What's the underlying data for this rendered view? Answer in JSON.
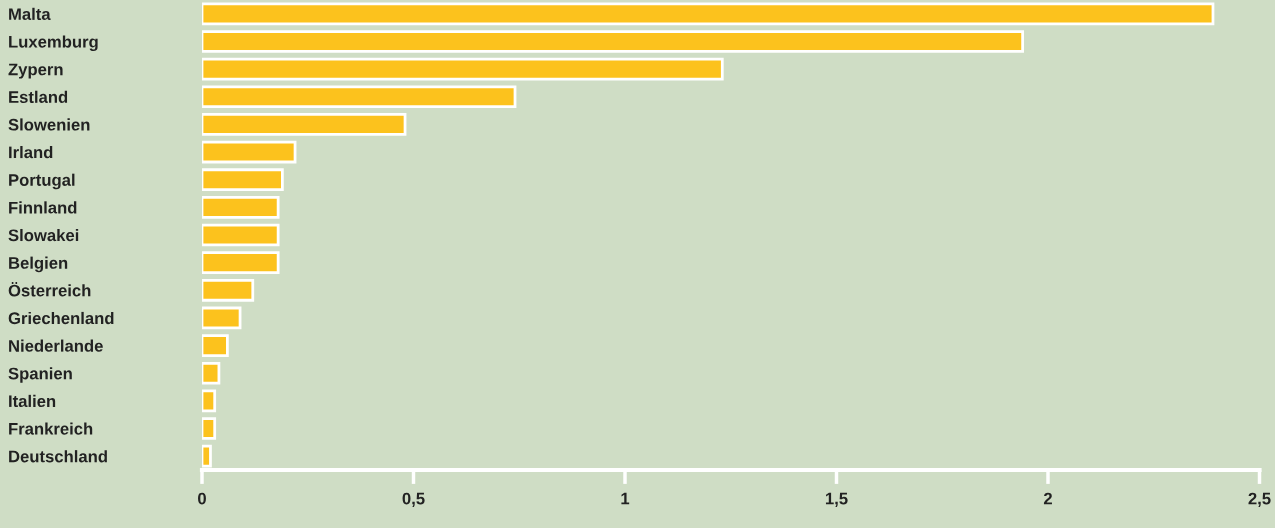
{
  "chart_data": {
    "type": "bar",
    "orientation": "horizontal",
    "categories": [
      "Malta",
      "Luxemburg",
      "Zypern",
      "Estland",
      "Slowenien",
      "Irland",
      "Portugal",
      "Finnland",
      "Slowakei",
      "Belgien",
      "Österreich",
      "Griechenland",
      "Niederlande",
      "Spanien",
      "Italien",
      "Frankreich",
      "Deutschland"
    ],
    "values": [
      2.39,
      1.94,
      1.23,
      0.74,
      0.48,
      0.22,
      0.19,
      0.18,
      0.18,
      0.18,
      0.12,
      0.09,
      0.06,
      0.04,
      0.03,
      0.03,
      0.02
    ],
    "color": "#fcc21d",
    "xlim": [
      0,
      2.5
    ],
    "xticks": [
      0,
      {
        "value": 0.5,
        "label": "0,5"
      },
      1,
      {
        "value": 1.5,
        "label": "1,5"
      },
      2,
      {
        "value": 2.5,
        "label": "2,5"
      }
    ],
    "grid": false,
    "legend": false
  }
}
